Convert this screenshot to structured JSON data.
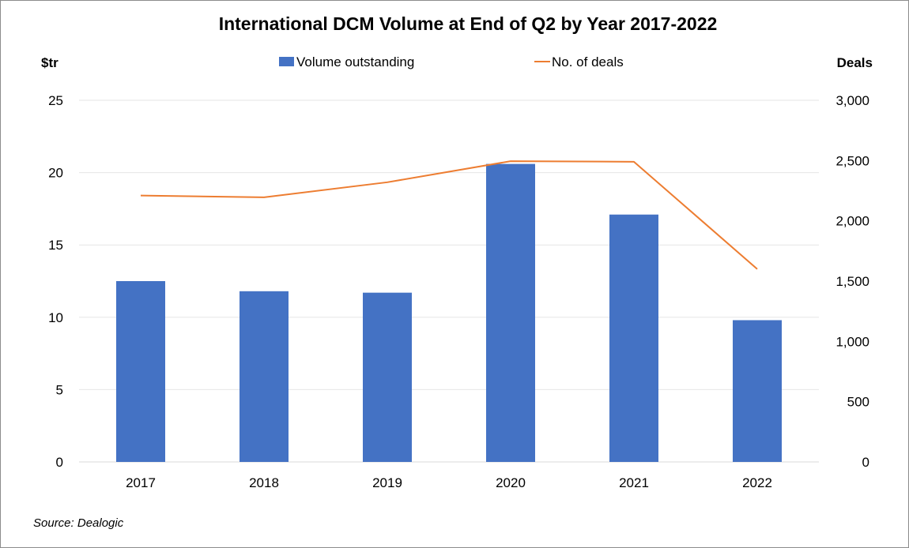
{
  "chart_data": {
    "type": "bar",
    "title": "International DCM Volume at End of Q2 by Year 2017-2022",
    "categories": [
      "2017",
      "2018",
      "2019",
      "2020",
      "2021",
      "2022"
    ],
    "y_left": {
      "unit_label": "$tr",
      "range": [
        0,
        25
      ],
      "ticks": [
        "0",
        "5",
        "10",
        "15",
        "20",
        "25"
      ],
      "tick_values": [
        0,
        5,
        10,
        15,
        20,
        25
      ]
    },
    "y_right": {
      "unit_label": "Deals",
      "range": [
        0,
        3000
      ],
      "ticks": [
        "0",
        "500",
        "1,000",
        "1,500",
        "2,000",
        "2,500",
        "3,000"
      ],
      "tick_values": [
        0,
        500,
        1000,
        1500,
        2000,
        2500,
        3000
      ]
    },
    "series": [
      {
        "name": "Volume outstanding",
        "type": "bar",
        "axis": "left",
        "color": "#4472c4",
        "values": [
          12.5,
          11.8,
          11.7,
          20.6,
          17.1,
          9.8
        ]
      },
      {
        "name": "No. of deals",
        "type": "line",
        "axis": "right",
        "color": "#ed7d31",
        "values": [
          2210,
          2195,
          2320,
          2495,
          2490,
          1600
        ]
      }
    ],
    "grid": true,
    "legend_position": "top-center",
    "source": "Source: Dealogic"
  }
}
